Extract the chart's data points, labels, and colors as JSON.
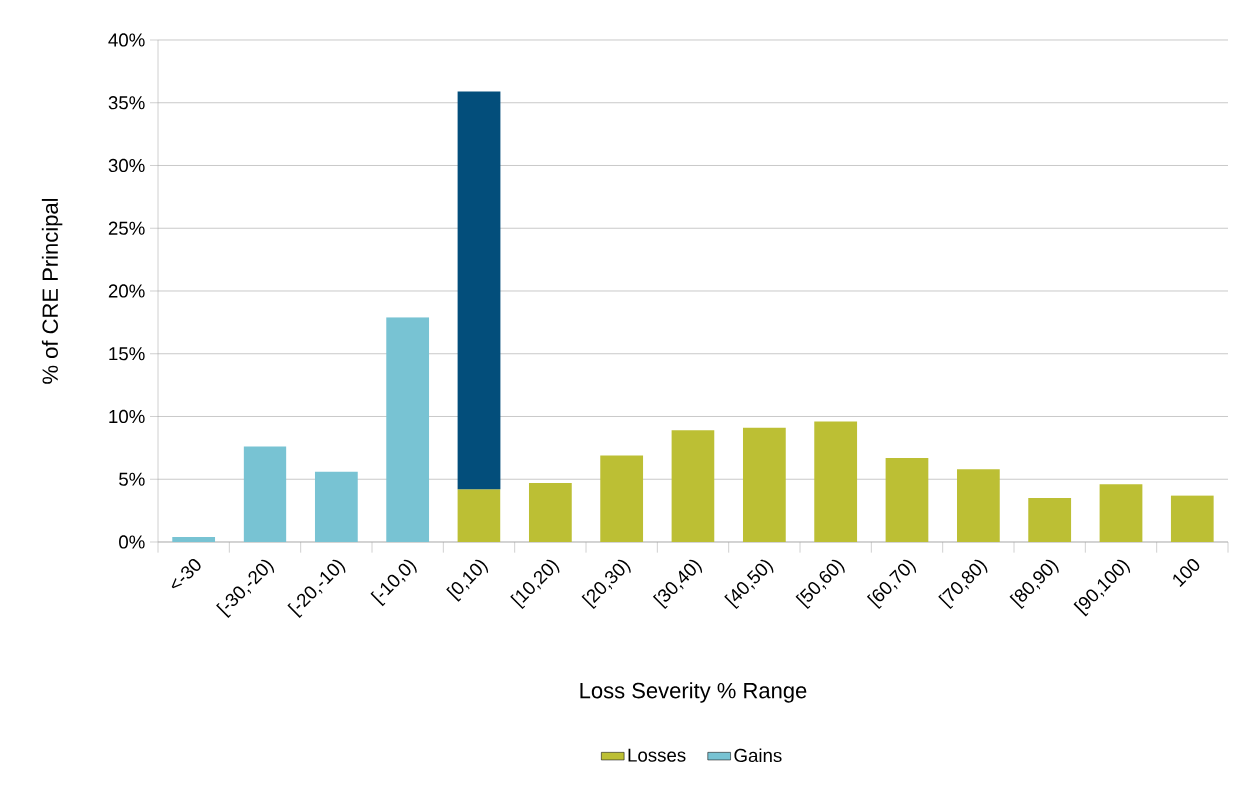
{
  "chart_data": {
    "type": "bar",
    "stacked": true,
    "xlabel": "Loss Severity % Range",
    "ylabel": "% of CRE Principal",
    "categories": [
      "<-30",
      "[-30,-20)",
      "[-20,-10)",
      "[-10,0)",
      "[0,10)",
      "[10,20)",
      "[20,30)",
      "[30,40)",
      "[40,50)",
      "[50,60)",
      "[60,70)",
      "[70,80)",
      "[80,90)",
      "[90,100)",
      "100"
    ],
    "series": [
      {
        "name": "Losses",
        "color": "#bcbf34",
        "values": [
          null,
          null,
          null,
          null,
          4.2,
          4.7,
          6.9,
          8.9,
          9.1,
          9.6,
          6.7,
          5.8,
          3.5,
          4.6,
          3.7
        ]
      },
      {
        "name": "Gains",
        "color": "#78c3d3",
        "values": [
          0.4,
          7.6,
          5.6,
          17.9,
          null,
          null,
          null,
          null,
          null,
          null,
          null,
          null,
          null,
          null,
          null
        ]
      },
      {
        "color": "#034e7b",
        "values": [
          null,
          null,
          null,
          null,
          31.7,
          null,
          null,
          null,
          null,
          null,
          null,
          null,
          null,
          null,
          null
        ]
      }
    ],
    "ylim": [
      0,
      40
    ],
    "yticks": [
      {
        "value": 0,
        "label": "0%"
      },
      {
        "value": 5,
        "label": "5%"
      },
      {
        "value": 10,
        "label": "10%"
      },
      {
        "value": 15,
        "label": "15%"
      },
      {
        "value": 20,
        "label": "20%"
      },
      {
        "value": 25,
        "label": "25%"
      },
      {
        "value": 30,
        "label": "30%"
      },
      {
        "value": 35,
        "label": "35%"
      },
      {
        "value": 40,
        "label": "40%"
      }
    ],
    "grid": "y",
    "legend": "bottom"
  }
}
